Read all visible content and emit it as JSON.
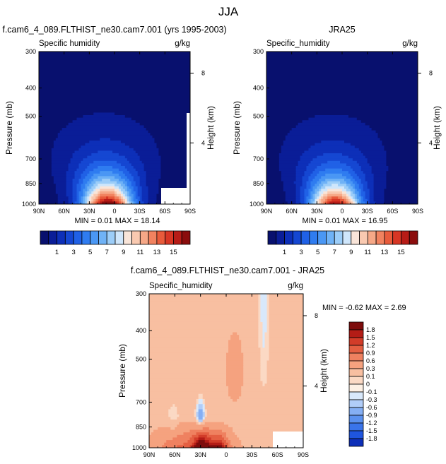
{
  "figure": {
    "title": "JJA"
  },
  "colors": {
    "full_field_palette": [
      "#08106e",
      "#0a1d97",
      "#0d2fb8",
      "#1547d2",
      "#2061e6",
      "#2f7cf0",
      "#4a97f4",
      "#6fb2f6",
      "#9ccdf8",
      "#cfe6fb",
      "#f9e5d9",
      "#f9c9b0",
      "#f6a887",
      "#f1825f",
      "#e85b3b",
      "#d73624",
      "#b71c17",
      "#8b0d0d"
    ],
    "diff_palette": [
      "#08106e",
      "#0d2fb8",
      "#1f55df",
      "#3a74ea",
      "#5b91ef",
      "#85aff4",
      "#b1cdf8",
      "#d8e8fb",
      "#fdf0e4",
      "#fbd9c4",
      "#f8bfa1",
      "#f5a27f",
      "#ef8160",
      "#e45f42",
      "#d23c29",
      "#b31c16",
      "#7d0c0c"
    ]
  },
  "chart_data": [
    {
      "type": "heatmap",
      "title": "f.cam6_4_089.FLTHIST_ne30.cam7.001 (yrs 1995-2003)",
      "left_label": "Specific humidity",
      "right_label": "g/kg",
      "ylabel": "Pressure (mb)",
      "y2label": "Height (km)",
      "x_ticks": [
        "90N",
        "60N",
        "30N",
        "0",
        "30S",
        "60S",
        "90S"
      ],
      "y_ticks": [
        "300",
        "400",
        "500",
        "700",
        "850",
        "1000"
      ],
      "y2_ticks": [
        "8",
        "4"
      ],
      "stats": "MIN =  0.01   MAX =  18.14",
      "colorbar_labels": [
        "1",
        "3",
        "5",
        "7",
        "9",
        "11",
        "13",
        "15"
      ],
      "peak": {
        "lat": 10,
        "p": 1000,
        "value": 18.14
      },
      "min": 0.01,
      "max": 18.14
    },
    {
      "type": "heatmap",
      "title": "JRA25",
      "left_label": "Specific_humidity",
      "right_label": "g/kg",
      "ylabel": "Pressure (mb)",
      "y2label": "Height (km)",
      "x_ticks": [
        "90N",
        "60N",
        "30N",
        "0",
        "30S",
        "60S",
        "90S"
      ],
      "y_ticks": [
        "300",
        "400",
        "500",
        "700",
        "850",
        "1000"
      ],
      "y2_ticks": [
        "8",
        "4"
      ],
      "stats": "MIN =  0.01   MAX =  16.95",
      "colorbar_labels": [
        "1",
        "3",
        "5",
        "7",
        "9",
        "11",
        "13",
        "15"
      ],
      "peak": {
        "lat": 10,
        "p": 1000,
        "value": 16.95
      },
      "min": 0.01,
      "max": 16.95
    },
    {
      "type": "heatmap",
      "title": "f.cam6_4_089.FLTHIST_ne30.cam7.001 - JRA25",
      "left_label": "Specific_humidity",
      "right_label": "g/kg",
      "ylabel": "Pressure (mb)",
      "y2label": "Height (km)",
      "x_ticks": [
        "90N",
        "60N",
        "30N",
        "0",
        "30S",
        "60S",
        "90S"
      ],
      "y_ticks": [
        "300",
        "400",
        "500",
        "700",
        "850",
        "1000"
      ],
      "y2_ticks": [
        "8",
        "4"
      ],
      "stats": "MIN = -0.62   MAX =   2.69",
      "colorbar_labels": [
        "1.8",
        "1.5",
        "1.2",
        "0.9",
        "0.6",
        "0.3",
        "0.1",
        "0",
        "-0.1",
        "-0.3",
        "-0.6",
        "-0.9",
        "-1.2",
        "-1.5",
        "-1.8"
      ],
      "min": -0.62,
      "max": 2.69
    }
  ]
}
